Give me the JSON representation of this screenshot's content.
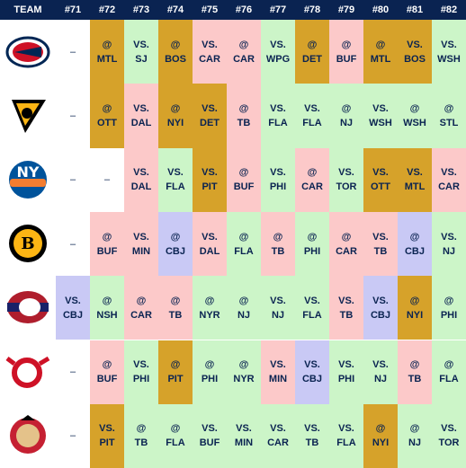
{
  "header": [
    "TEAM",
    "#71",
    "#72",
    "#73",
    "#74",
    "#75",
    "#76",
    "#77",
    "#78",
    "#79",
    "#80",
    "#81",
    "#82"
  ],
  "header_color": "#0a2351",
  "rows": [
    {
      "cells": [
        {
          "dash": "–",
          "color": "#ffffff"
        },
        {
          "loc": "@",
          "opp": "MTL",
          "color": "#d6a22a"
        },
        {
          "loc": "VS.",
          "opp": "SJ",
          "color": "#ccf5c8"
        },
        {
          "loc": "@",
          "opp": "BOS",
          "color": "#d6a22a"
        },
        {
          "loc": "VS.",
          "opp": "CAR",
          "color": "#fcc9c9"
        },
        {
          "loc": "@",
          "opp": "CAR",
          "color": "#fcc9c9"
        },
        {
          "loc": "VS.",
          "opp": "WPG",
          "color": "#ccf5c8"
        },
        {
          "loc": "@",
          "opp": "DET",
          "color": "#d6a22a"
        },
        {
          "loc": "@",
          "opp": "BUF",
          "color": "#fcc9c9"
        },
        {
          "loc": "@",
          "opp": "MTL",
          "color": "#d6a22a"
        },
        {
          "loc": "VS.",
          "opp": "BOS",
          "color": "#d6a22a"
        },
        {
          "loc": "VS.",
          "opp": "WSH",
          "color": "#ccf5c8"
        }
      ]
    },
    {
      "cells": [
        {
          "dash": "–",
          "color": "#ffffff"
        },
        {
          "loc": "@",
          "opp": "OTT",
          "color": "#d6a22a"
        },
        {
          "loc": "VS.",
          "opp": "DAL",
          "color": "#fcc9c9"
        },
        {
          "loc": "@",
          "opp": "NYI",
          "color": "#d6a22a"
        },
        {
          "loc": "VS.",
          "opp": "DET",
          "color": "#d6a22a"
        },
        {
          "loc": "@",
          "opp": "TB",
          "color": "#fcc9c9"
        },
        {
          "loc": "VS.",
          "opp": "FLA",
          "color": "#ccf5c8"
        },
        {
          "loc": "VS.",
          "opp": "FLA",
          "color": "#ccf5c8"
        },
        {
          "loc": "@",
          "opp": "NJ",
          "color": "#ccf5c8"
        },
        {
          "loc": "VS.",
          "opp": "WSH",
          "color": "#ccf5c8"
        },
        {
          "loc": "@",
          "opp": "WSH",
          "color": "#ccf5c8"
        },
        {
          "loc": "@",
          "opp": "STL",
          "color": "#ccf5c8"
        }
      ]
    },
    {
      "cells": [
        {
          "dash": "–",
          "color": "#ffffff"
        },
        {
          "dash": "–",
          "color": "#ffffff"
        },
        {
          "loc": "VS.",
          "opp": "DAL",
          "color": "#fcc9c9"
        },
        {
          "loc": "VS.",
          "opp": "FLA",
          "color": "#ccf5c8"
        },
        {
          "loc": "VS.",
          "opp": "PIT",
          "color": "#d6a22a"
        },
        {
          "loc": "@",
          "opp": "BUF",
          "color": "#fcc9c9"
        },
        {
          "loc": "VS.",
          "opp": "PHI",
          "color": "#ccf5c8"
        },
        {
          "loc": "@",
          "opp": "CAR",
          "color": "#fcc9c9"
        },
        {
          "loc": "VS.",
          "opp": "TOR",
          "color": "#ccf5c8"
        },
        {
          "loc": "VS.",
          "opp": "OTT",
          "color": "#d6a22a"
        },
        {
          "loc": "VS.",
          "opp": "MTL",
          "color": "#d6a22a"
        },
        {
          "loc": "VS.",
          "opp": "CAR",
          "color": "#fcc9c9"
        }
      ]
    },
    {
      "cells": [
        {
          "dash": "–",
          "color": "#ffffff"
        },
        {
          "loc": "@",
          "opp": "BUF",
          "color": "#fcc9c9"
        },
        {
          "loc": "VS.",
          "opp": "MIN",
          "color": "#fcc9c9"
        },
        {
          "loc": "@",
          "opp": "CBJ",
          "color": "#c9c9f5"
        },
        {
          "loc": "VS.",
          "opp": "DAL",
          "color": "#fcc9c9"
        },
        {
          "loc": "@",
          "opp": "FLA",
          "color": "#ccf5c8"
        },
        {
          "loc": "@",
          "opp": "TB",
          "color": "#fcc9c9"
        },
        {
          "loc": "@",
          "opp": "PHI",
          "color": "#ccf5c8"
        },
        {
          "loc": "@",
          "opp": "CAR",
          "color": "#fcc9c9"
        },
        {
          "loc": "VS.",
          "opp": "TB",
          "color": "#fcc9c9"
        },
        {
          "loc": "@",
          "opp": "CBJ",
          "color": "#c9c9f5"
        },
        {
          "loc": "VS.",
          "opp": "NJ",
          "color": "#ccf5c8"
        }
      ]
    },
    {
      "cells": [
        {
          "loc": "VS.",
          "opp": "CBJ",
          "color": "#c9c9f5"
        },
        {
          "loc": "@",
          "opp": "NSH",
          "color": "#ccf5c8"
        },
        {
          "loc": "@",
          "opp": "CAR",
          "color": "#fcc9c9"
        },
        {
          "loc": "@",
          "opp": "TB",
          "color": "#fcc9c9"
        },
        {
          "loc": "@",
          "opp": "NYR",
          "color": "#ccf5c8"
        },
        {
          "loc": "@",
          "opp": "NJ",
          "color": "#ccf5c8"
        },
        {
          "loc": "VS.",
          "opp": "NJ",
          "color": "#ccf5c8"
        },
        {
          "loc": "VS.",
          "opp": "FLA",
          "color": "#ccf5c8"
        },
        {
          "loc": "VS.",
          "opp": "TB",
          "color": "#fcc9c9"
        },
        {
          "loc": "VS.",
          "opp": "CBJ",
          "color": "#c9c9f5"
        },
        {
          "loc": "@",
          "opp": "NYI",
          "color": "#d6a22a"
        },
        {
          "loc": "@",
          "opp": "PHI",
          "color": "#ccf5c8"
        }
      ]
    },
    {
      "cells": [
        {
          "dash": "–",
          "color": "#ffffff"
        },
        {
          "loc": "@",
          "opp": "BUF",
          "color": "#fcc9c9"
        },
        {
          "loc": "VS.",
          "opp": "PHI",
          "color": "#ccf5c8"
        },
        {
          "loc": "@",
          "opp": "PIT",
          "color": "#d6a22a"
        },
        {
          "loc": "@",
          "opp": "PHI",
          "color": "#ccf5c8"
        },
        {
          "loc": "@",
          "opp": "NYR",
          "color": "#ccf5c8"
        },
        {
          "loc": "VS.",
          "opp": "MIN",
          "color": "#fcc9c9"
        },
        {
          "loc": "VS.",
          "opp": "CBJ",
          "color": "#c9c9f5"
        },
        {
          "loc": "VS.",
          "opp": "PHI",
          "color": "#ccf5c8"
        },
        {
          "loc": "VS.",
          "opp": "NJ",
          "color": "#ccf5c8"
        },
        {
          "loc": "@",
          "opp": "TB",
          "color": "#fcc9c9"
        },
        {
          "loc": "@",
          "opp": "FLA",
          "color": "#ccf5c8"
        }
      ]
    },
    {
      "cells": [
        {
          "dash": "–",
          "color": "#ffffff"
        },
        {
          "loc": "VS.",
          "opp": "PIT",
          "color": "#d6a22a"
        },
        {
          "loc": "@",
          "opp": "TB",
          "color": "#ccf5c8"
        },
        {
          "loc": "@",
          "opp": "FLA",
          "color": "#ccf5c8"
        },
        {
          "loc": "VS.",
          "opp": "BUF",
          "color": "#ccf5c8"
        },
        {
          "loc": "VS.",
          "opp": "MIN",
          "color": "#ccf5c8"
        },
        {
          "loc": "VS.",
          "opp": "CAR",
          "color": "#ccf5c8"
        },
        {
          "loc": "VS.",
          "opp": "TB",
          "color": "#ccf5c8"
        },
        {
          "loc": "VS.",
          "opp": "FLA",
          "color": "#ccf5c8"
        },
        {
          "loc": "@",
          "opp": "NYI",
          "color": "#d6a22a"
        },
        {
          "loc": "@",
          "opp": "NJ",
          "color": "#ccf5c8"
        },
        {
          "loc": "VS.",
          "opp": "TOR",
          "color": "#ccf5c8"
        }
      ]
    }
  ]
}
